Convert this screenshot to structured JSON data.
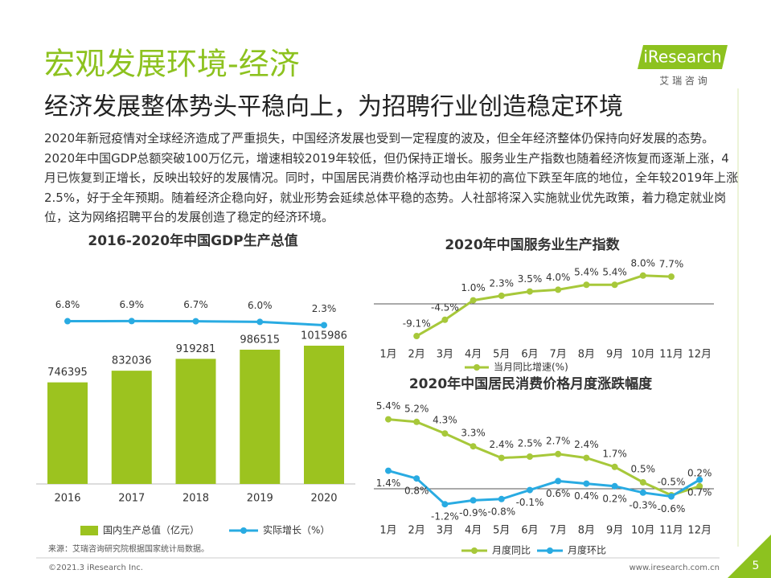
{
  "header": {
    "title": "宏观发展环境-经济",
    "subtitle": "经济发展整体势头平稳向上，为招聘行业创造稳定环境"
  },
  "logo": {
    "name": "iResearch",
    "tagline": "艾 瑞 咨 询"
  },
  "body": "2020年新冠疫情对全球经济造成了严重损失，中国经济发展也受到一定程度的波及，但全年经济整体仍保持向好发展的态势。2020年中国GDP总额突破100万亿元，增速相较2019年较低，但仍保持正增长。服务业生产指数也随着经济恢复而逐渐上涨，4月已恢复到正增长，反映出较好的发展情况。同时，中国居民消费价格浮动也由年初的高位下跌至年底的地位，全年较2019年上涨2.5%，好于全年预期。随着经济企稳向好，就业形势会延续总体平稳的态势。人社部将深入实施就业优先政策，着力稳定就业岗位，这为网络招聘平台的发展创造了稳定的经济环境。",
  "chart_data": [
    {
      "type": "bar-line",
      "title": "2016-2020年中国GDP生产总值",
      "categories": [
        "2016",
        "2017",
        "2018",
        "2019",
        "2020"
      ],
      "series": [
        {
          "name": "国内生产总值（亿元）",
          "type": "bar",
          "color": "#9cc31f",
          "values": [
            746395,
            832036,
            919281,
            986515,
            1015986
          ]
        },
        {
          "name": "实际增长（%）",
          "type": "line",
          "axis": "y2",
          "color": "#29abe2",
          "values": [
            6.8,
            6.9,
            6.7,
            6.0,
            2.3
          ],
          "value_labels": [
            "6.8%",
            "6.9%",
            "6.7%",
            "6.0%",
            "2.3%"
          ]
        }
      ]
    },
    {
      "type": "line",
      "title": "2020年中国服务业生产指数",
      "categories": [
        "1月",
        "2月",
        "3月",
        "4月",
        "5月",
        "6月",
        "7月",
        "8月",
        "9月",
        "10月",
        "11月",
        "12月"
      ],
      "series": [
        {
          "name": "当月同比增速(%)",
          "color": "#a7c83a",
          "values": [
            null,
            -9.1,
            -4.5,
            1.0,
            2.3,
            3.5,
            4.0,
            5.4,
            5.4,
            8.0,
            7.7,
            null
          ],
          "value_labels": [
            null,
            "-9.1%",
            "-4.5%",
            "1.0%",
            "2.3%",
            "3.5%",
            "4.0%",
            "5.4%",
            "5.4%",
            "8.0%",
            "7.7%",
            null
          ]
        }
      ]
    },
    {
      "type": "line",
      "title": "2020年中国居民消费价格月度涨跌幅度",
      "categories": [
        "1月",
        "2月",
        "3月",
        "4月",
        "5月",
        "6月",
        "7月",
        "8月",
        "9月",
        "10月",
        "11月",
        "12月"
      ],
      "series": [
        {
          "name": "月度同比",
          "color": "#a7c83a",
          "values": [
            5.4,
            5.2,
            4.3,
            3.3,
            2.4,
            2.5,
            2.7,
            2.4,
            1.7,
            0.5,
            -0.5,
            0.2
          ],
          "value_labels": [
            "5.4%",
            "5.2%",
            "4.3%",
            "3.3%",
            "2.4%",
            "2.5%",
            "2.7%",
            "2.4%",
            "1.7%",
            "0.5%",
            "-0.5%",
            "0.2%"
          ]
        },
        {
          "name": "月度环比",
          "color": "#29abe2",
          "values": [
            1.4,
            0.8,
            -1.2,
            -0.9,
            -0.8,
            -0.1,
            0.6,
            0.4,
            0.2,
            -0.3,
            -0.6,
            0.7
          ],
          "value_labels": [
            "1.4%",
            "0.8%",
            "-1.2%",
            "-0.9%",
            "-0.8%",
            "-0.1%",
            "0.6%",
            "0.4%",
            "0.2%",
            "-0.3%",
            "-0.6%",
            "0.7%"
          ]
        }
      ]
    }
  ],
  "footer": {
    "source": "来源：艾瑞咨询研究院根据国家统计局数据。",
    "copyright": "©2021.3 iResearch Inc.",
    "website": "www.iresearch.com.cn",
    "page": "5"
  }
}
